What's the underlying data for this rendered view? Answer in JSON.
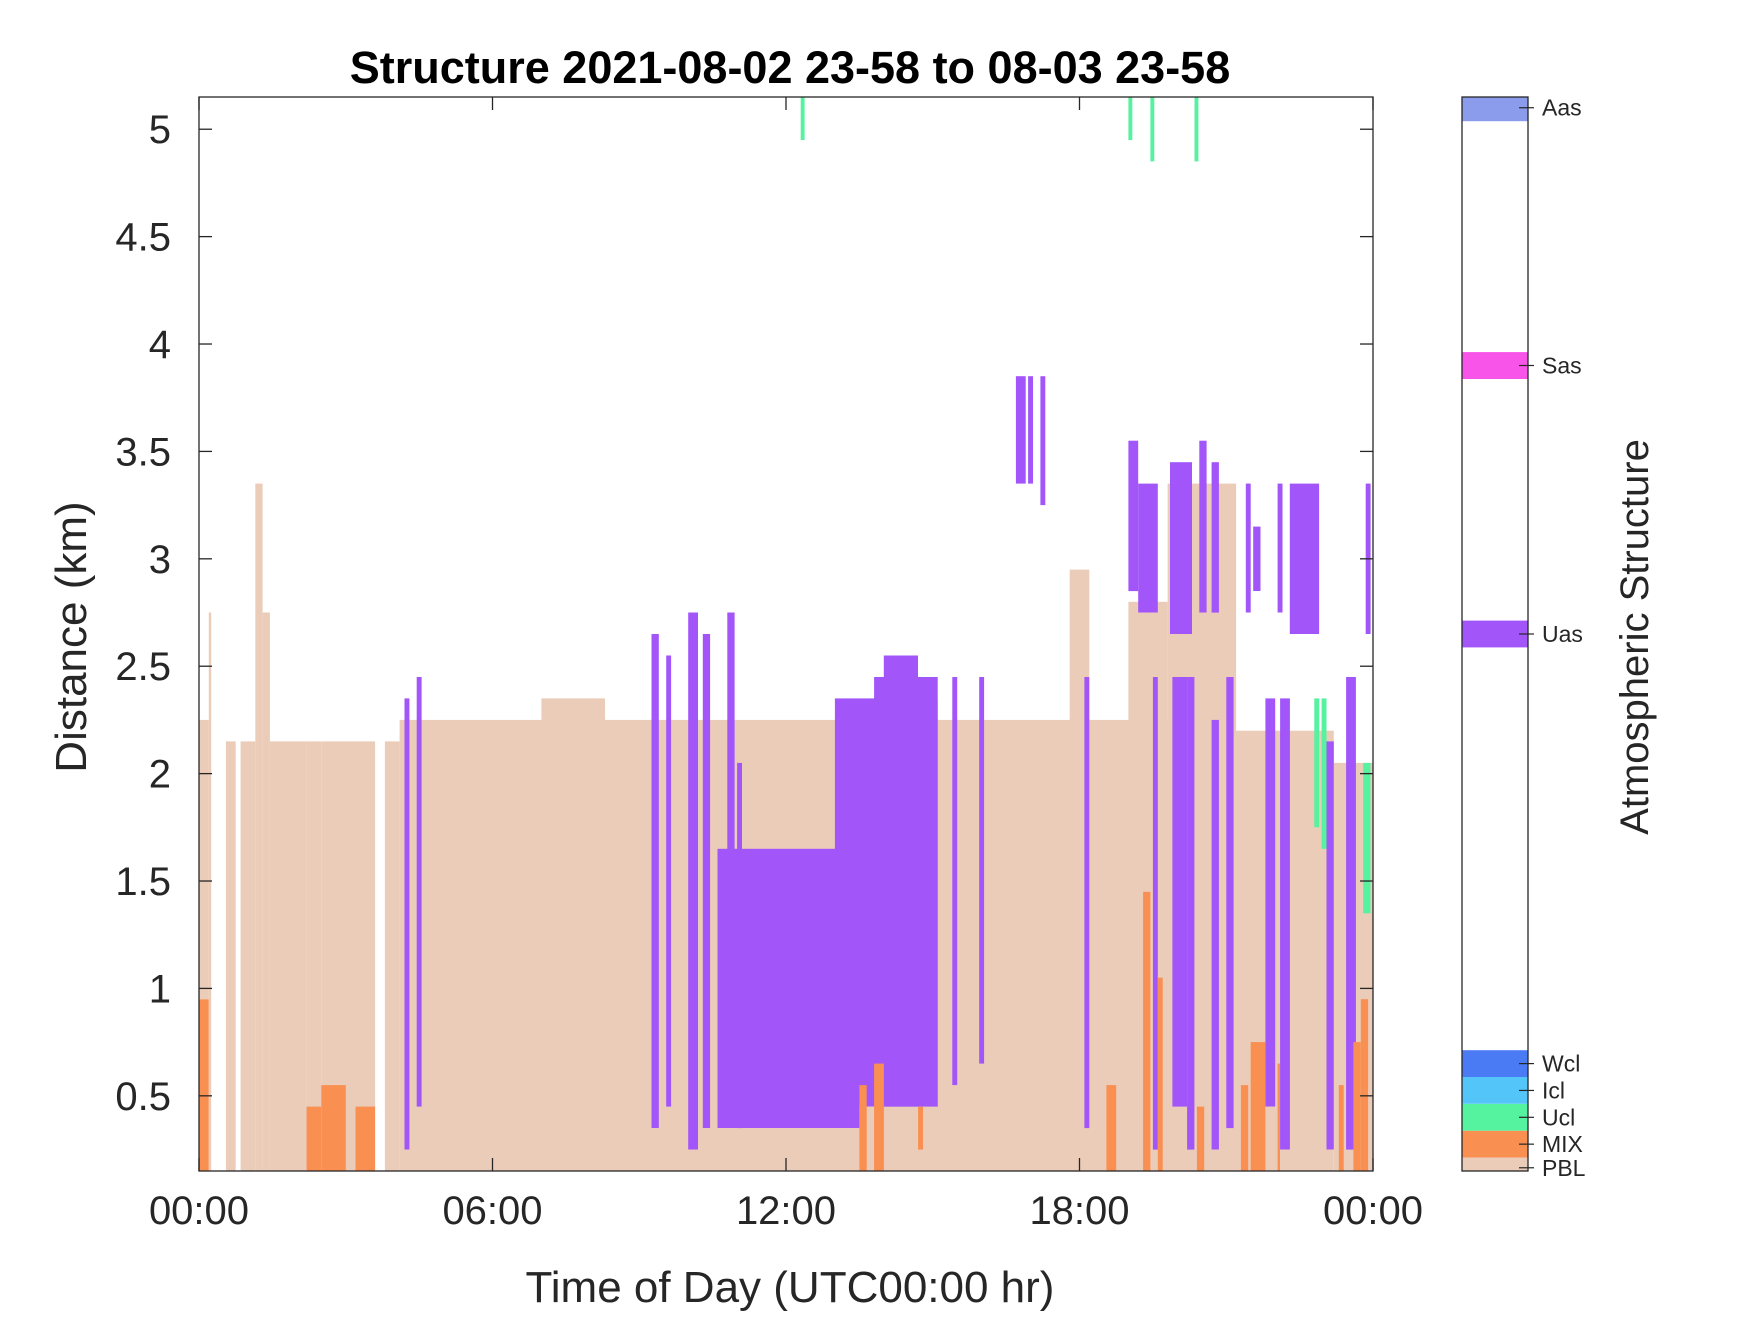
{
  "chart_data": {
    "type": "heatmap",
    "title": "Structure 2021-08-02 23-58 to 08-03 23-58",
    "xlabel": "Time of Day (UTC00:00 hr)",
    "ylabel": "Distance (km)",
    "xlim": [
      0,
      24
    ],
    "ylim": [
      0.15,
      5.15
    ],
    "x_ticks": [
      0,
      6,
      12,
      18,
      24
    ],
    "x_tick_labels": [
      "00:00",
      "06:00",
      "12:00",
      "18:00",
      "00:00"
    ],
    "y_ticks": [
      0.5,
      1,
      1.5,
      2,
      2.5,
      3,
      3.5,
      4,
      4.5,
      5
    ],
    "y_tick_labels": [
      "0.5",
      "1",
      "1.5",
      "2",
      "2.5",
      "3",
      "3.5",
      "4",
      "4.5",
      "5"
    ],
    "colorbar": {
      "label": "Atmospheric Structure",
      "classes": [
        {
          "name": "PBL",
          "color": "#EBCCB8"
        },
        {
          "name": "MIX",
          "color": "#F98F50"
        },
        {
          "name": "Ucl",
          "color": "#55F29F"
        },
        {
          "name": "Icl",
          "color": "#54C5F9"
        },
        {
          "name": "Wcl",
          "color": "#4A7BF4"
        },
        {
          "name": "Uas",
          "color": "#A255F9"
        },
        {
          "name": "Sas",
          "color": "#F954EA"
        },
        {
          "name": "Aas",
          "color": "#8A9CEB"
        }
      ]
    },
    "segments": [
      {
        "class": "MIX",
        "x": [
          0.0,
          0.2
        ],
        "y": [
          0.15,
          0.95
        ]
      },
      {
        "class": "PBL",
        "x": [
          0.0,
          0.2
        ],
        "y": [
          0.95,
          2.25
        ]
      },
      {
        "class": "PBL",
        "x": [
          0.2,
          0.25
        ],
        "y": [
          0.15,
          2.75
        ]
      },
      {
        "class": "PBL",
        "x": [
          0.55,
          0.75
        ],
        "y": [
          0.15,
          2.15
        ]
      },
      {
        "class": "PBL",
        "x": [
          0.85,
          1.15
        ],
        "y": [
          0.15,
          2.15
        ]
      },
      {
        "class": "PBL",
        "x": [
          1.15,
          1.3
        ],
        "y": [
          0.15,
          3.35
        ]
      },
      {
        "class": "PBL",
        "x": [
          1.3,
          1.45
        ],
        "y": [
          0.15,
          2.75
        ]
      },
      {
        "class": "PBL",
        "x": [
          1.45,
          2.2
        ],
        "y": [
          0.15,
          2.15
        ]
      },
      {
        "class": "PBL",
        "x": [
          2.2,
          2.5
        ],
        "y": [
          0.15,
          2.15
        ]
      },
      {
        "class": "MIX",
        "x": [
          2.2,
          2.5
        ],
        "y": [
          0.15,
          0.45
        ]
      },
      {
        "class": "PBL",
        "x": [
          2.5,
          3.6
        ],
        "y": [
          0.15,
          2.15
        ]
      },
      {
        "class": "MIX",
        "x": [
          2.5,
          3.0
        ],
        "y": [
          0.15,
          0.55
        ]
      },
      {
        "class": "MIX",
        "x": [
          3.2,
          3.6
        ],
        "y": [
          0.15,
          0.45
        ]
      },
      {
        "class": "PBL",
        "x": [
          3.8,
          4.1
        ],
        "y": [
          0.15,
          2.15
        ]
      },
      {
        "class": "PBL",
        "x": [
          4.1,
          7.0
        ],
        "y": [
          0.15,
          2.25
        ]
      },
      {
        "class": "PBL",
        "x": [
          7.0,
          8.3
        ],
        "y": [
          0.15,
          2.35
        ]
      },
      {
        "class": "PBL",
        "x": [
          8.3,
          18.5
        ],
        "y": [
          0.15,
          2.25
        ]
      },
      {
        "class": "PBL",
        "x": [
          17.8,
          18.2
        ],
        "y": [
          0.15,
          2.95
        ]
      },
      {
        "class": "PBL",
        "x": [
          18.5,
          20.2
        ],
        "y": [
          0.15,
          2.25
        ]
      },
      {
        "class": "PBL",
        "x": [
          19.0,
          19.8
        ],
        "y": [
          0.15,
          2.8
        ]
      },
      {
        "class": "PBL",
        "x": [
          19.8,
          21.2
        ],
        "y": [
          0.15,
          3.35
        ]
      },
      {
        "class": "PBL",
        "x": [
          21.2,
          23.2
        ],
        "y": [
          0.15,
          2.2
        ]
      },
      {
        "class": "PBL",
        "x": [
          23.2,
          24.0
        ],
        "y": [
          0.15,
          2.05
        ]
      },
      {
        "class": "Uas",
        "x": [
          4.2,
          4.3
        ],
        "y": [
          0.25,
          2.35
        ]
      },
      {
        "class": "Uas",
        "x": [
          4.45,
          4.55
        ],
        "y": [
          0.45,
          2.45
        ]
      },
      {
        "class": "Uas",
        "x": [
          9.25,
          9.4
        ],
        "y": [
          0.35,
          2.65
        ]
      },
      {
        "class": "Uas",
        "x": [
          9.55,
          9.65
        ],
        "y": [
          0.45,
          2.55
        ]
      },
      {
        "class": "Uas",
        "x": [
          10.0,
          10.2
        ],
        "y": [
          0.25,
          2.75
        ]
      },
      {
        "class": "Uas",
        "x": [
          10.3,
          10.45
        ],
        "y": [
          0.35,
          2.65
        ]
      },
      {
        "class": "Uas",
        "x": [
          10.6,
          13.5
        ],
        "y": [
          0.35,
          1.65
        ]
      },
      {
        "class": "Uas",
        "x": [
          10.8,
          10.95
        ],
        "y": [
          0.35,
          2.75
        ]
      },
      {
        "class": "Uas",
        "x": [
          11.0,
          11.1
        ],
        "y": [
          0.35,
          2.05
        ]
      },
      {
        "class": "Uas",
        "x": [
          13.0,
          15.1
        ],
        "y": [
          0.45,
          2.35
        ]
      },
      {
        "class": "Uas",
        "x": [
          13.8,
          15.1
        ],
        "y": [
          0.45,
          2.45
        ]
      },
      {
        "class": "Uas",
        "x": [
          14.0,
          14.7
        ],
        "y": [
          0.45,
          2.55
        ]
      },
      {
        "class": "Uas",
        "x": [
          15.4,
          15.5
        ],
        "y": [
          0.55,
          2.45
        ]
      },
      {
        "class": "Uas",
        "x": [
          15.95,
          16.05
        ],
        "y": [
          0.65,
          2.45
        ]
      },
      {
        "class": "Uas",
        "x": [
          16.7,
          16.9
        ],
        "y": [
          3.35,
          3.85
        ]
      },
      {
        "class": "Uas",
        "x": [
          16.95,
          17.05
        ],
        "y": [
          3.35,
          3.85
        ]
      },
      {
        "class": "Uas",
        "x": [
          17.2,
          17.3
        ],
        "y": [
          3.25,
          3.85
        ]
      },
      {
        "class": "Uas",
        "x": [
          18.1,
          18.2
        ],
        "y": [
          0.35,
          2.45
        ]
      },
      {
        "class": "Uas",
        "x": [
          19.0,
          19.2
        ],
        "y": [
          2.85,
          3.55
        ]
      },
      {
        "class": "Uas",
        "x": [
          19.2,
          19.6
        ],
        "y": [
          2.75,
          3.35
        ]
      },
      {
        "class": "Uas",
        "x": [
          19.85,
          20.3
        ],
        "y": [
          2.65,
          3.45
        ]
      },
      {
        "class": "Uas",
        "x": [
          19.5,
          19.6
        ],
        "y": [
          0.25,
          2.45
        ]
      },
      {
        "class": "Uas",
        "x": [
          19.9,
          20.2
        ],
        "y": [
          0.45,
          2.45
        ]
      },
      {
        "class": "Uas",
        "x": [
          20.2,
          20.35
        ],
        "y": [
          0.25,
          2.45
        ]
      },
      {
        "class": "Uas",
        "x": [
          20.45,
          20.6
        ],
        "y": [
          2.75,
          3.55
        ]
      },
      {
        "class": "Uas",
        "x": [
          20.7,
          20.85
        ],
        "y": [
          2.75,
          3.45
        ]
      },
      {
        "class": "Uas",
        "x": [
          20.7,
          20.85
        ],
        "y": [
          0.25,
          2.25
        ]
      },
      {
        "class": "Uas",
        "x": [
          21.0,
          21.15
        ],
        "y": [
          0.35,
          2.45
        ]
      },
      {
        "class": "Uas",
        "x": [
          21.4,
          21.5
        ],
        "y": [
          2.75,
          3.35
        ]
      },
      {
        "class": "Uas",
        "x": [
          21.55,
          21.7
        ],
        "y": [
          2.85,
          3.15
        ]
      },
      {
        "class": "Uas",
        "x": [
          21.8,
          22.0
        ],
        "y": [
          0.45,
          2.35
        ]
      },
      {
        "class": "Uas",
        "x": [
          22.1,
          22.3
        ],
        "y": [
          0.25,
          2.35
        ]
      },
      {
        "class": "Uas",
        "x": [
          22.05,
          22.15
        ],
        "y": [
          2.75,
          3.35
        ]
      },
      {
        "class": "Uas",
        "x": [
          22.3,
          22.9
        ],
        "y": [
          2.65,
          3.35
        ]
      },
      {
        "class": "Uas",
        "x": [
          23.05,
          23.2
        ],
        "y": [
          0.25,
          2.15
        ]
      },
      {
        "class": "Uas",
        "x": [
          23.45,
          23.65
        ],
        "y": [
          0.25,
          2.45
        ]
      },
      {
        "class": "Uas",
        "x": [
          23.85,
          23.95
        ],
        "y": [
          2.65,
          3.35
        ]
      },
      {
        "class": "MIX",
        "x": [
          13.5,
          13.65
        ],
        "y": [
          0.15,
          0.55
        ]
      },
      {
        "class": "MIX",
        "x": [
          13.8,
          14.0
        ],
        "y": [
          0.15,
          0.65
        ]
      },
      {
        "class": "MIX",
        "x": [
          14.7,
          14.8
        ],
        "y": [
          0.25,
          0.45
        ]
      },
      {
        "class": "MIX",
        "x": [
          18.55,
          18.75
        ],
        "y": [
          0.15,
          0.55
        ]
      },
      {
        "class": "MIX",
        "x": [
          19.3,
          19.45
        ],
        "y": [
          0.15,
          1.45
        ]
      },
      {
        "class": "MIX",
        "x": [
          19.6,
          19.7
        ],
        "y": [
          0.15,
          1.05
        ]
      },
      {
        "class": "MIX",
        "x": [
          20.4,
          20.55
        ],
        "y": [
          0.15,
          0.45
        ]
      },
      {
        "class": "MIX",
        "x": [
          21.3,
          21.45
        ],
        "y": [
          0.15,
          0.55
        ]
      },
      {
        "class": "MIX",
        "x": [
          21.5,
          21.8
        ],
        "y": [
          0.15,
          0.75
        ]
      },
      {
        "class": "MIX",
        "x": [
          22.05,
          22.1
        ],
        "y": [
          0.15,
          0.65
        ]
      },
      {
        "class": "MIX",
        "x": [
          23.3,
          23.4
        ],
        "y": [
          0.15,
          0.55
        ]
      },
      {
        "class": "MIX",
        "x": [
          23.6,
          23.75
        ],
        "y": [
          0.15,
          0.75
        ]
      },
      {
        "class": "MIX",
        "x": [
          23.75,
          23.9
        ],
        "y": [
          0.15,
          0.95
        ]
      },
      {
        "class": "Ucl",
        "x": [
          12.3,
          12.38
        ],
        "y": [
          4.95,
          5.15
        ]
      },
      {
        "class": "Ucl",
        "x": [
          19.0,
          19.08
        ],
        "y": [
          4.95,
          5.15
        ]
      },
      {
        "class": "Ucl",
        "x": [
          19.45,
          19.53
        ],
        "y": [
          4.85,
          5.15
        ]
      },
      {
        "class": "Ucl",
        "x": [
          20.35,
          20.43
        ],
        "y": [
          4.85,
          5.15
        ]
      },
      {
        "class": "Ucl",
        "x": [
          22.8,
          22.9
        ],
        "y": [
          1.75,
          2.35
        ]
      },
      {
        "class": "Ucl",
        "x": [
          22.95,
          23.05
        ],
        "y": [
          1.65,
          2.35
        ]
      },
      {
        "class": "Ucl",
        "x": [
          23.8,
          23.95
        ],
        "y": [
          1.35,
          2.05
        ]
      }
    ]
  }
}
